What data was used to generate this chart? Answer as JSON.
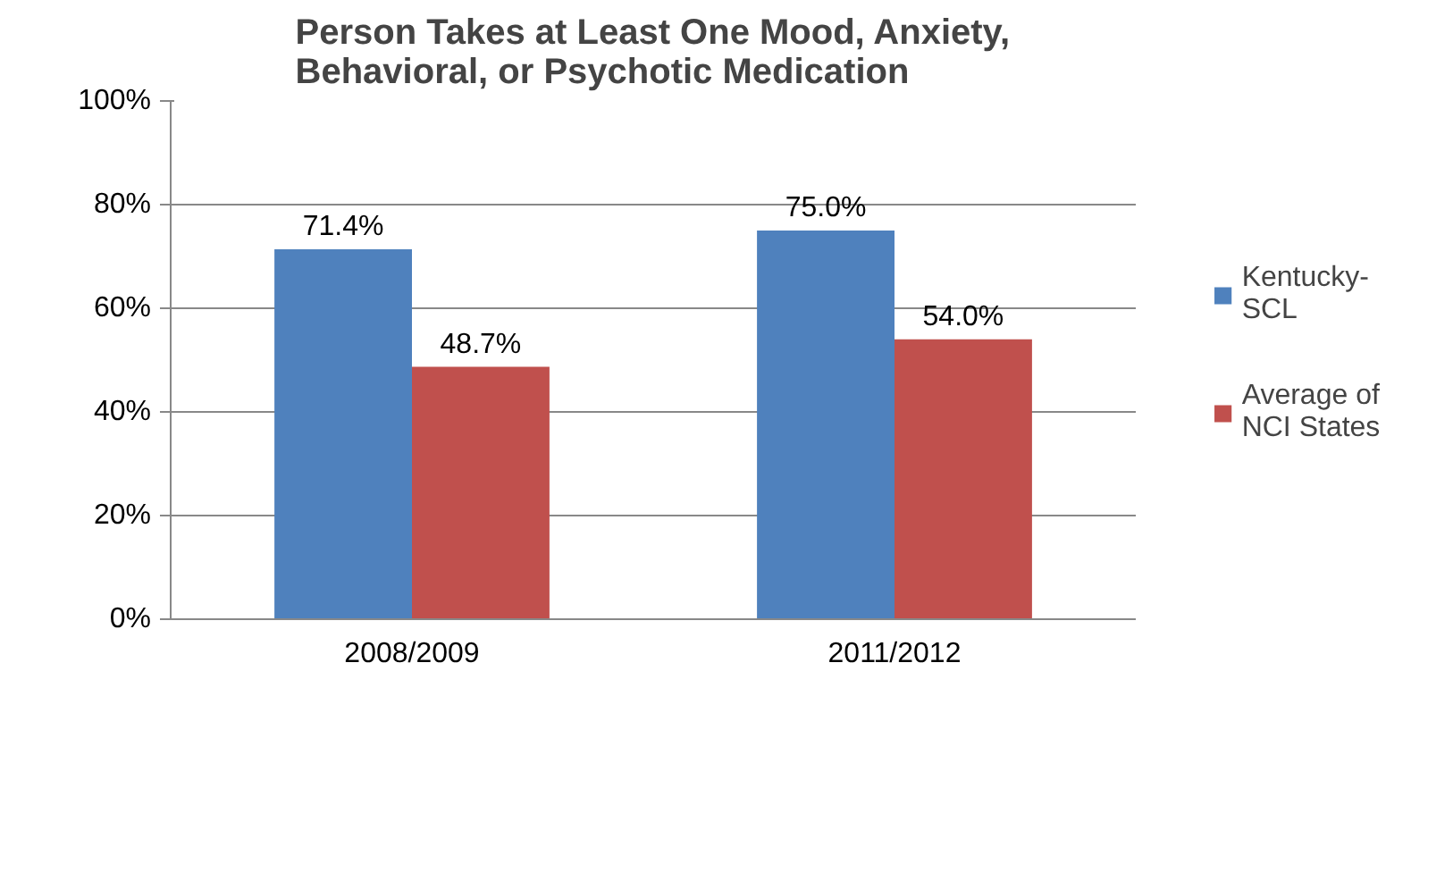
{
  "chart_data": {
    "type": "bar",
    "title": "Person Takes at Least One Mood, Anxiety, Behavioral, or Psychotic Medication",
    "categories": [
      "2008/2009",
      "2011/2012"
    ],
    "series": [
      {
        "name": "Kentucky-SCL",
        "color": "#4f81bd",
        "values": [
          71.4,
          75.0
        ],
        "value_labels": [
          "71.4%",
          "75.0%"
        ]
      },
      {
        "name": "Average of NCI States",
        "color": "#c0504d",
        "values": [
          48.7,
          54.0
        ],
        "value_labels": [
          "48.7%",
          "54.0%"
        ]
      }
    ],
    "ylim": [
      0,
      100
    ],
    "yticks": [
      {
        "value": 0,
        "label": "0%"
      },
      {
        "value": 20,
        "label": "20%"
      },
      {
        "value": 40,
        "label": "40%"
      },
      {
        "value": 60,
        "label": "60%"
      },
      {
        "value": 80,
        "label": "80%"
      },
      {
        "value": 100,
        "label": "100%"
      }
    ],
    "grid": "y",
    "legend": "right"
  }
}
